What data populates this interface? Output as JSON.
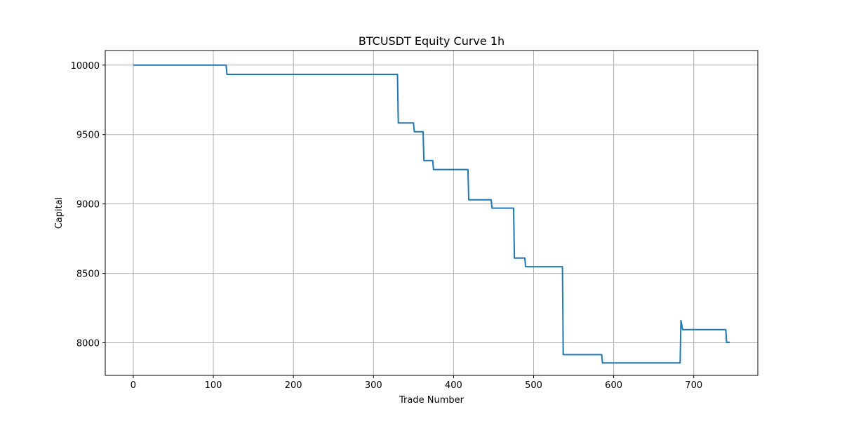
{
  "chart_data": {
    "type": "line",
    "title": "BTCUSDT Equity Curve 1h",
    "xlabel": "Trade Number",
    "ylabel": "Capital",
    "xlim": [
      -35,
      780
    ],
    "ylim": [
      7765,
      10105
    ],
    "xticks": [
      0,
      100,
      200,
      300,
      400,
      500,
      600,
      700
    ],
    "yticks": [
      8000,
      8500,
      9000,
      9500,
      10000
    ],
    "grid": true,
    "colors": {
      "series": "#1f77b4",
      "grid": "#b0b0b0",
      "axes": "#000000"
    },
    "series": [
      {
        "name": "",
        "points": [
          [
            0,
            10000
          ],
          [
            116,
            10000
          ],
          [
            117,
            9933
          ],
          [
            330,
            9933
          ],
          [
            331,
            9583
          ],
          [
            350,
            9583
          ],
          [
            351,
            9520
          ],
          [
            362,
            9520
          ],
          [
            363,
            9312
          ],
          [
            374,
            9312
          ],
          [
            375,
            9248
          ],
          [
            418,
            9248
          ],
          [
            419,
            9030
          ],
          [
            447,
            9030
          ],
          [
            448,
            8970
          ],
          [
            475,
            8970
          ],
          [
            476,
            8610
          ],
          [
            489,
            8610
          ],
          [
            490,
            8548
          ],
          [
            536,
            8548
          ],
          [
            537,
            7915
          ],
          [
            585,
            7915
          ],
          [
            586,
            7855
          ],
          [
            683,
            7855
          ],
          [
            684,
            8160
          ],
          [
            686,
            8095
          ],
          [
            740,
            8095
          ],
          [
            741,
            8003
          ],
          [
            745,
            8003
          ]
        ]
      }
    ]
  }
}
